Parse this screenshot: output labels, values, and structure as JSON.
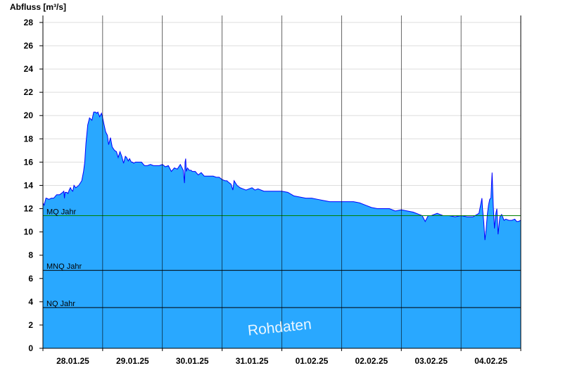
{
  "chart_data": {
    "type": "area",
    "ylabel": "Abfluss [m³/s]",
    "ylim": [
      0,
      28.6
    ],
    "yticks": [
      0,
      2,
      4,
      6,
      8,
      10,
      12,
      14,
      16,
      18,
      20,
      22,
      24,
      26,
      28
    ],
    "xlim_days": [
      0,
      8
    ],
    "xticks": [
      "28.01.25",
      "29.01.25",
      "30.01.25",
      "31.01.25",
      "01.02.25",
      "02.02.25",
      "03.02.25",
      "04.02.25"
    ],
    "grid": true,
    "colors": {
      "fill": "#29a8ff",
      "line": "#0000ff",
      "mq_line": "#008000",
      "ref_line": "#000000",
      "gridline": "#dddddd"
    },
    "reference_lines": [
      {
        "label": "MQ Jahr",
        "value": 11.4
      },
      {
        "label": "MNQ Jahr",
        "value": 6.7
      },
      {
        "label": "NQ Jahr",
        "value": 3.5
      }
    ],
    "watermark": "Rohdaten",
    "series": [
      {
        "x": [
          0.0,
          0.02,
          0.05,
          0.06,
          0.1,
          0.14,
          0.18,
          0.23,
          0.28,
          0.33,
          0.35,
          0.36,
          0.37,
          0.4,
          0.42,
          0.44,
          0.46,
          0.48,
          0.5,
          0.52,
          0.55,
          0.6,
          0.65,
          0.68,
          0.7,
          0.72,
          0.75,
          0.78,
          0.82,
          0.85,
          0.88,
          0.9,
          0.92,
          0.95,
          0.98,
          1.0,
          1.02,
          1.05,
          1.08,
          1.1,
          1.13,
          1.16,
          1.2,
          1.23,
          1.26,
          1.29,
          1.32,
          1.35,
          1.38,
          1.4,
          1.43,
          1.45,
          1.48,
          1.5,
          1.52,
          1.55,
          1.58,
          1.6,
          1.65,
          1.7,
          1.75,
          1.8,
          1.85,
          1.9,
          1.95,
          2.0,
          2.05,
          2.1,
          2.15,
          2.2,
          2.25,
          2.3,
          2.35,
          2.37,
          2.38,
          2.39,
          2.4,
          2.42,
          2.45,
          2.48,
          2.5,
          2.55,
          2.6,
          2.65,
          2.7,
          2.75,
          2.8,
          2.85,
          2.9,
          2.95,
          3.0,
          3.05,
          3.08,
          3.1,
          3.15,
          3.18,
          3.2,
          3.25,
          3.3,
          3.35,
          3.4,
          3.45,
          3.5,
          3.55,
          3.6,
          3.7,
          3.8,
          3.9,
          4.0,
          4.1,
          4.2,
          4.3,
          4.4,
          4.5,
          4.6,
          4.7,
          4.8,
          4.9,
          5.0,
          5.1,
          5.2,
          5.3,
          5.4,
          5.5,
          5.6,
          5.7,
          5.8,
          5.9,
          6.0,
          6.1,
          6.2,
          6.3,
          6.35,
          6.4,
          6.45,
          6.5,
          6.6,
          6.7,
          6.8,
          6.9,
          7.0,
          7.1,
          7.2,
          7.3,
          7.35,
          7.36,
          7.38,
          7.4,
          7.42,
          7.44,
          7.46,
          7.48,
          7.5,
          7.52,
          7.54,
          7.56,
          7.58,
          7.6,
          7.62,
          7.65,
          7.68,
          7.72,
          7.75,
          7.8,
          7.85,
          7.9,
          7.93,
          7.96,
          8.0
        ],
        "y": [
          12.5,
          12.3,
          12.9,
          12.9,
          12.8,
          12.9,
          12.9,
          13.2,
          13.2,
          13.4,
          13.5,
          12.9,
          13.4,
          13.4,
          13.3,
          13.6,
          13.8,
          13.6,
          13.5,
          14.0,
          13.8,
          14.0,
          14.4,
          15.2,
          16.0,
          17.6,
          19.2,
          19.8,
          19.6,
          20.3,
          20.3,
          20.2,
          20.3,
          19.9,
          20.2,
          19.8,
          19.3,
          18.6,
          18.3,
          17.5,
          18.1,
          17.3,
          17.0,
          16.9,
          16.4,
          16.9,
          16.5,
          15.9,
          16.5,
          16.4,
          16.1,
          16.3,
          16.0,
          16.0,
          15.9,
          16.0,
          16.0,
          16.0,
          16.0,
          15.7,
          15.7,
          15.8,
          15.7,
          15.7,
          15.7,
          15.8,
          15.6,
          15.7,
          15.2,
          15.5,
          15.4,
          15.8,
          15.3,
          14.2,
          16.0,
          16.3,
          15.2,
          15.5,
          15.3,
          15.3,
          15.2,
          15.2,
          14.9,
          15.1,
          14.8,
          14.8,
          14.8,
          14.8,
          14.7,
          14.7,
          14.5,
          14.4,
          14.4,
          14.3,
          14.1,
          13.6,
          14.4,
          14.0,
          13.8,
          13.7,
          13.6,
          13.7,
          13.8,
          13.6,
          13.7,
          13.5,
          13.5,
          13.5,
          13.5,
          13.4,
          13.1,
          13.0,
          12.9,
          12.9,
          12.8,
          12.7,
          12.6,
          12.6,
          12.6,
          12.6,
          12.6,
          12.5,
          12.3,
          12.1,
          12.0,
          12.0,
          12.0,
          11.8,
          11.9,
          11.8,
          11.7,
          11.5,
          11.4,
          10.9,
          11.4,
          11.4,
          11.6,
          11.4,
          11.4,
          11.3,
          11.4,
          11.3,
          11.3,
          11.6,
          12.9,
          12.0,
          10.9,
          9.3,
          10.2,
          11.5,
          12.3,
          12.8,
          12.9,
          15.1,
          12.2,
          10.3,
          11.5,
          12.0,
          9.8,
          11.3,
          11.5,
          11.0,
          11.1,
          11.0,
          11.0,
          11.1,
          10.9,
          10.9,
          11.0
        ]
      }
    ]
  }
}
